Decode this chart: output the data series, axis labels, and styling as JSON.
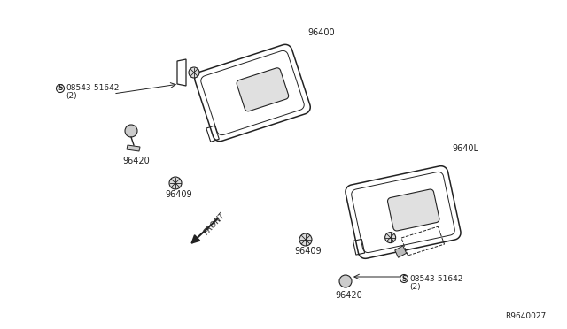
{
  "bg_color": "#ffffff",
  "line_color": "#222222",
  "label_color": "#222222",
  "ref_code": "R9640027",
  "parts": {
    "visor_top_label": "96400",
    "visor_bottom_label": "9640L",
    "clip_label": "96420",
    "clip_label2": "96420",
    "bolt_label": "08543-51642",
    "bolt_label2": "08543-51642",
    "bolt_qty": "(2)",
    "bolt_qty2": "(2)",
    "bracket_label": "96409",
    "bracket_label2": "96409",
    "front_label": "FRONT"
  },
  "font_size": 7.0,
  "small_font_size": 6.5
}
